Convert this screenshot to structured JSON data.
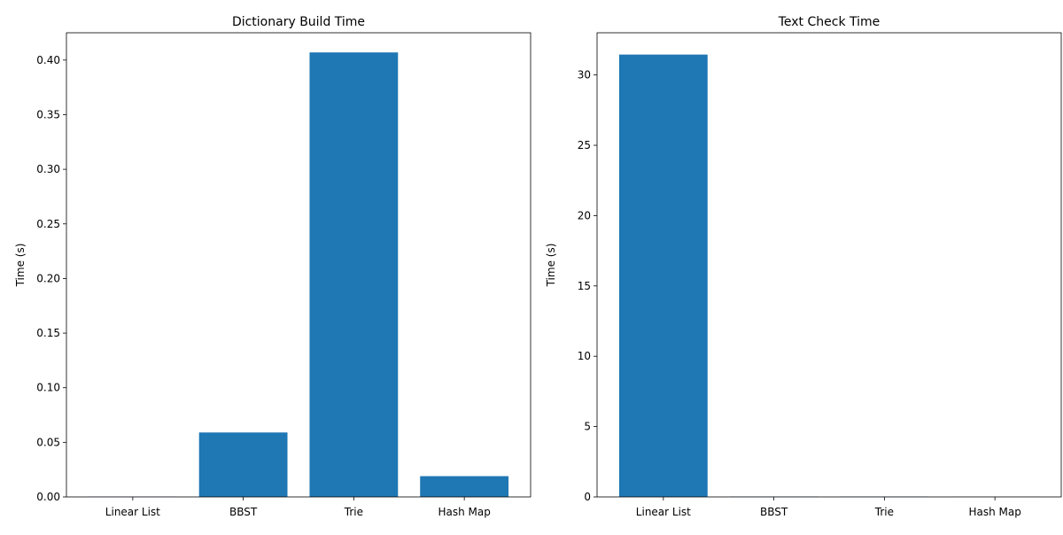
{
  "chart_data": [
    {
      "type": "bar",
      "title": "Dictionary Build Time",
      "xlabel": "",
      "ylabel": "Time (s)",
      "categories": [
        "Linear List",
        "BBST",
        "Trie",
        "Hash Map"
      ],
      "values": [
        0.0002,
        0.059,
        0.407,
        0.019
      ],
      "ylim": [
        0,
        0.425
      ],
      "yticks": [
        0.0,
        0.05,
        0.1,
        0.15,
        0.2,
        0.25,
        0.3,
        0.35,
        0.4
      ],
      "ytick_labels": [
        "0.00",
        "0.05",
        "0.10",
        "0.15",
        "0.20",
        "0.25",
        "0.30",
        "0.35",
        "0.40"
      ],
      "bar_color": "#1f77b4",
      "grid": false
    },
    {
      "type": "bar",
      "title": "Text Check Time",
      "xlabel": "",
      "ylabel": "Time (s)",
      "categories": [
        "Linear List",
        "BBST",
        "Trie",
        "Hash Map"
      ],
      "values": [
        31.45,
        0.02,
        0.02,
        0.01
      ],
      "ylim": [
        0,
        33.0
      ],
      "yticks": [
        0,
        5,
        10,
        15,
        20,
        25,
        30
      ],
      "ytick_labels": [
        "0",
        "5",
        "10",
        "15",
        "20",
        "25",
        "30"
      ],
      "bar_color": "#1f77b4",
      "grid": false
    }
  ]
}
